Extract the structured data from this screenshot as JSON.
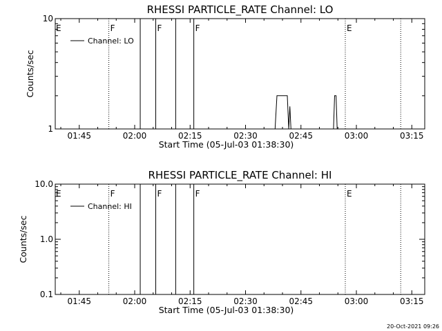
{
  "footer": {
    "timestamp": "20-Oct-2021 09:26"
  },
  "chart_data": [
    {
      "type": "line",
      "title": "RHESSI PARTICLE_RATE Channel: LO",
      "xlabel": "Start Time (05-Jul-03 01:38:30)",
      "ylabel": "Counts/sec",
      "y_scale": "log",
      "xlim_minutes_since_start": [
        0,
        100
      ],
      "ylim": [
        1,
        10
      ],
      "x_ticks": [
        {
          "t": 6.5,
          "label": "01:45"
        },
        {
          "t": 21.5,
          "label": "02:00"
        },
        {
          "t": 36.5,
          "label": "02:15"
        },
        {
          "t": 51.5,
          "label": "02:30"
        },
        {
          "t": 66.5,
          "label": "02:45"
        },
        {
          "t": 81.5,
          "label": "03:00"
        },
        {
          "t": 96.5,
          "label": "03:15"
        }
      ],
      "y_ticks": [
        {
          "v": 1,
          "label": "1"
        },
        {
          "v": 10,
          "label": "10"
        }
      ],
      "legend": {
        "placement": "top-left",
        "label": "Channel: LO"
      },
      "series": [
        {
          "name": "Channel: LO",
          "x": [
            59.5,
            60.0,
            62.8,
            63.2,
            63.5,
            63.8,
            75.3,
            75.6,
            76.0,
            76.3
          ],
          "y": [
            1,
            2,
            2,
            1,
            1.6,
            1,
            1,
            2,
            2,
            1
          ]
        }
      ],
      "vertical_lines": [
        {
          "t": 14.5,
          "style": "dotted",
          "flag": "F"
        },
        {
          "t": 23.0,
          "style": "solid",
          "flag": ""
        },
        {
          "t": 27.2,
          "style": "solid",
          "flag": "F"
        },
        {
          "t": 32.6,
          "style": "solid",
          "flag": ""
        },
        {
          "t": 37.5,
          "style": "solid",
          "flag": "F"
        },
        {
          "t": 78.5,
          "style": "dotted",
          "flag": "E"
        },
        {
          "t": 93.5,
          "style": "dotted",
          "flag": ""
        }
      ],
      "edge_flags": [
        {
          "t": 0,
          "flag": "E"
        }
      ]
    },
    {
      "type": "line",
      "title": "RHESSI PARTICLE_RATE Channel: HI",
      "xlabel": "Start Time (05-Jul-03 01:38:30)",
      "ylabel": "Counts/sec",
      "y_scale": "log",
      "xlim_minutes_since_start": [
        0,
        100
      ],
      "ylim": [
        0.1,
        10
      ],
      "x_ticks": [
        {
          "t": 6.5,
          "label": "01:45"
        },
        {
          "t": 21.5,
          "label": "02:00"
        },
        {
          "t": 36.5,
          "label": "02:15"
        },
        {
          "t": 51.5,
          "label": "02:30"
        },
        {
          "t": 66.5,
          "label": "02:45"
        },
        {
          "t": 81.5,
          "label": "03:00"
        },
        {
          "t": 96.5,
          "label": "03:15"
        }
      ],
      "y_ticks": [
        {
          "v": 0.1,
          "label": "0.1"
        },
        {
          "v": 1,
          "label": "1.0"
        },
        {
          "v": 10,
          "label": "10.0"
        }
      ],
      "legend": {
        "placement": "top-left",
        "label": "Channel: HI"
      },
      "series": [
        {
          "name": "Channel: HI",
          "x": [],
          "y": []
        }
      ],
      "vertical_lines": [
        {
          "t": 14.5,
          "style": "dotted",
          "flag": "F"
        },
        {
          "t": 23.0,
          "style": "solid",
          "flag": ""
        },
        {
          "t": 27.2,
          "style": "solid",
          "flag": "F"
        },
        {
          "t": 32.6,
          "style": "solid",
          "flag": ""
        },
        {
          "t": 37.5,
          "style": "solid",
          "flag": "F"
        },
        {
          "t": 78.5,
          "style": "dotted",
          "flag": "E"
        },
        {
          "t": 93.5,
          "style": "dotted",
          "flag": ""
        }
      ],
      "edge_flags": [
        {
          "t": 0,
          "flag": "E"
        }
      ]
    }
  ]
}
